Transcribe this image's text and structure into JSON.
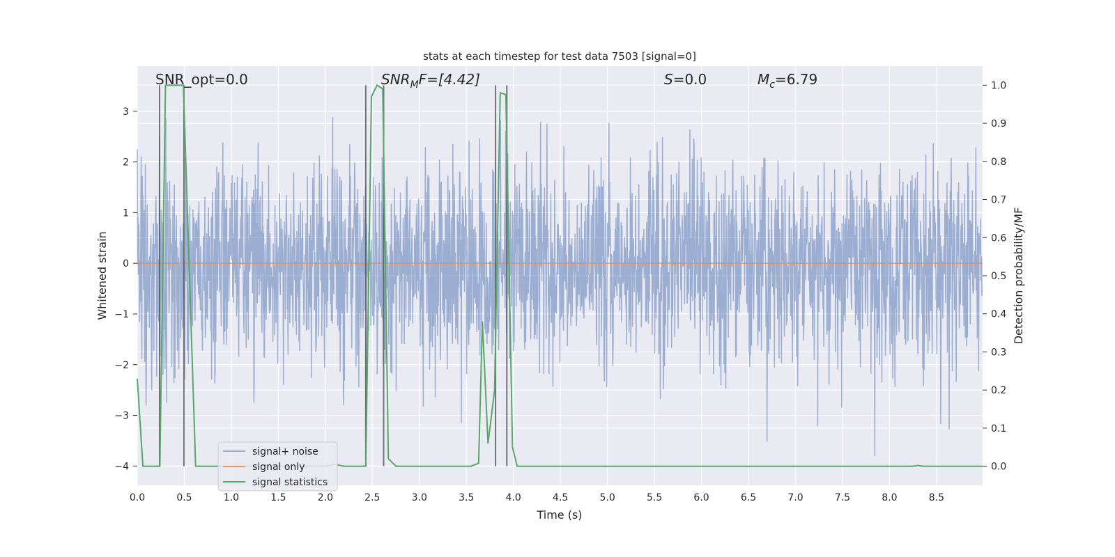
{
  "chart_data": {
    "type": "line",
    "title": "stats at each timestep for test data 7503 [signal=0]",
    "xlabel": "Time (s)",
    "ylabel": "Whitened strain",
    "ylabel_right": "Detection probability/MF",
    "xlim": [
      0,
      8.99
    ],
    "ylim": [
      -4.38,
      3.89
    ],
    "ylim_right": [
      -0.05,
      1.05
    ],
    "xticks": [
      "0.0",
      "0.5",
      "1.0",
      "1.5",
      "2.0",
      "2.5",
      "3.0",
      "3.5",
      "4.0",
      "4.5",
      "5.0",
      "5.5",
      "6.0",
      "6.5",
      "7.0",
      "7.5",
      "8.0",
      "8.5"
    ],
    "yticks": [
      "−4",
      "−3",
      "−2",
      "−1",
      "0",
      "1",
      "2",
      "3"
    ],
    "yticks_right": [
      "0.0",
      "0.1",
      "0.2",
      "0.3",
      "0.4",
      "0.5",
      "0.6",
      "0.7",
      "0.8",
      "0.9",
      "1.0"
    ],
    "grid": true,
    "legend_position": "lower-center-left",
    "annotations": {
      "snr_opt": "SNR_opt=0.0",
      "snr_mf_main": "SNR",
      "snr_mf_sub": "M",
      "snr_mf_rest": "F=[4.42]",
      "s_label": "S",
      "s_rest": "=0.0",
      "mc_main": "M",
      "mc_sub": "c",
      "mc_rest": "=6.79"
    },
    "series": [
      {
        "name": "signal+ noise",
        "color": "#4c72b0",
        "axis": "left",
        "description_values": "dense noise, amplitude mostly within ±1.3, peaks to about ±3.5"
      },
      {
        "name": "signal only",
        "color": "#dd8452",
        "axis": "left",
        "x": [
          0,
          8.99
        ],
        "y": [
          0,
          0
        ]
      },
      {
        "name": "signal statistics",
        "color": "#55a868",
        "axis": "right",
        "x": [
          0.0,
          0.06,
          0.24,
          0.3,
          0.49,
          0.62,
          2.0,
          2.1,
          2.2,
          2.43,
          2.49,
          2.55,
          2.61,
          2.67,
          2.75,
          3.55,
          3.63,
          3.67,
          3.73,
          3.8,
          3.86,
          3.92,
          3.99,
          4.04,
          8.25,
          8.3,
          8.35,
          8.99
        ],
        "y": [
          0.23,
          0.0,
          0.0,
          1.0,
          1.0,
          0.0,
          0.0,
          0.005,
          0.0,
          0.0,
          0.97,
          1.0,
          0.99,
          0.02,
          0.0,
          0.0,
          0.008,
          0.38,
          0.06,
          0.2,
          0.98,
          0.975,
          0.05,
          0.0,
          0.0,
          0.002,
          0.0,
          0.0
        ]
      }
    ],
    "vertical_lines": [
      0.237,
      0.496,
      2.43,
      2.62,
      3.81,
      3.93
    ],
    "colors": {
      "background": "#eaeaf2",
      "grid": "#ffffff",
      "vlines": "#555555"
    }
  }
}
